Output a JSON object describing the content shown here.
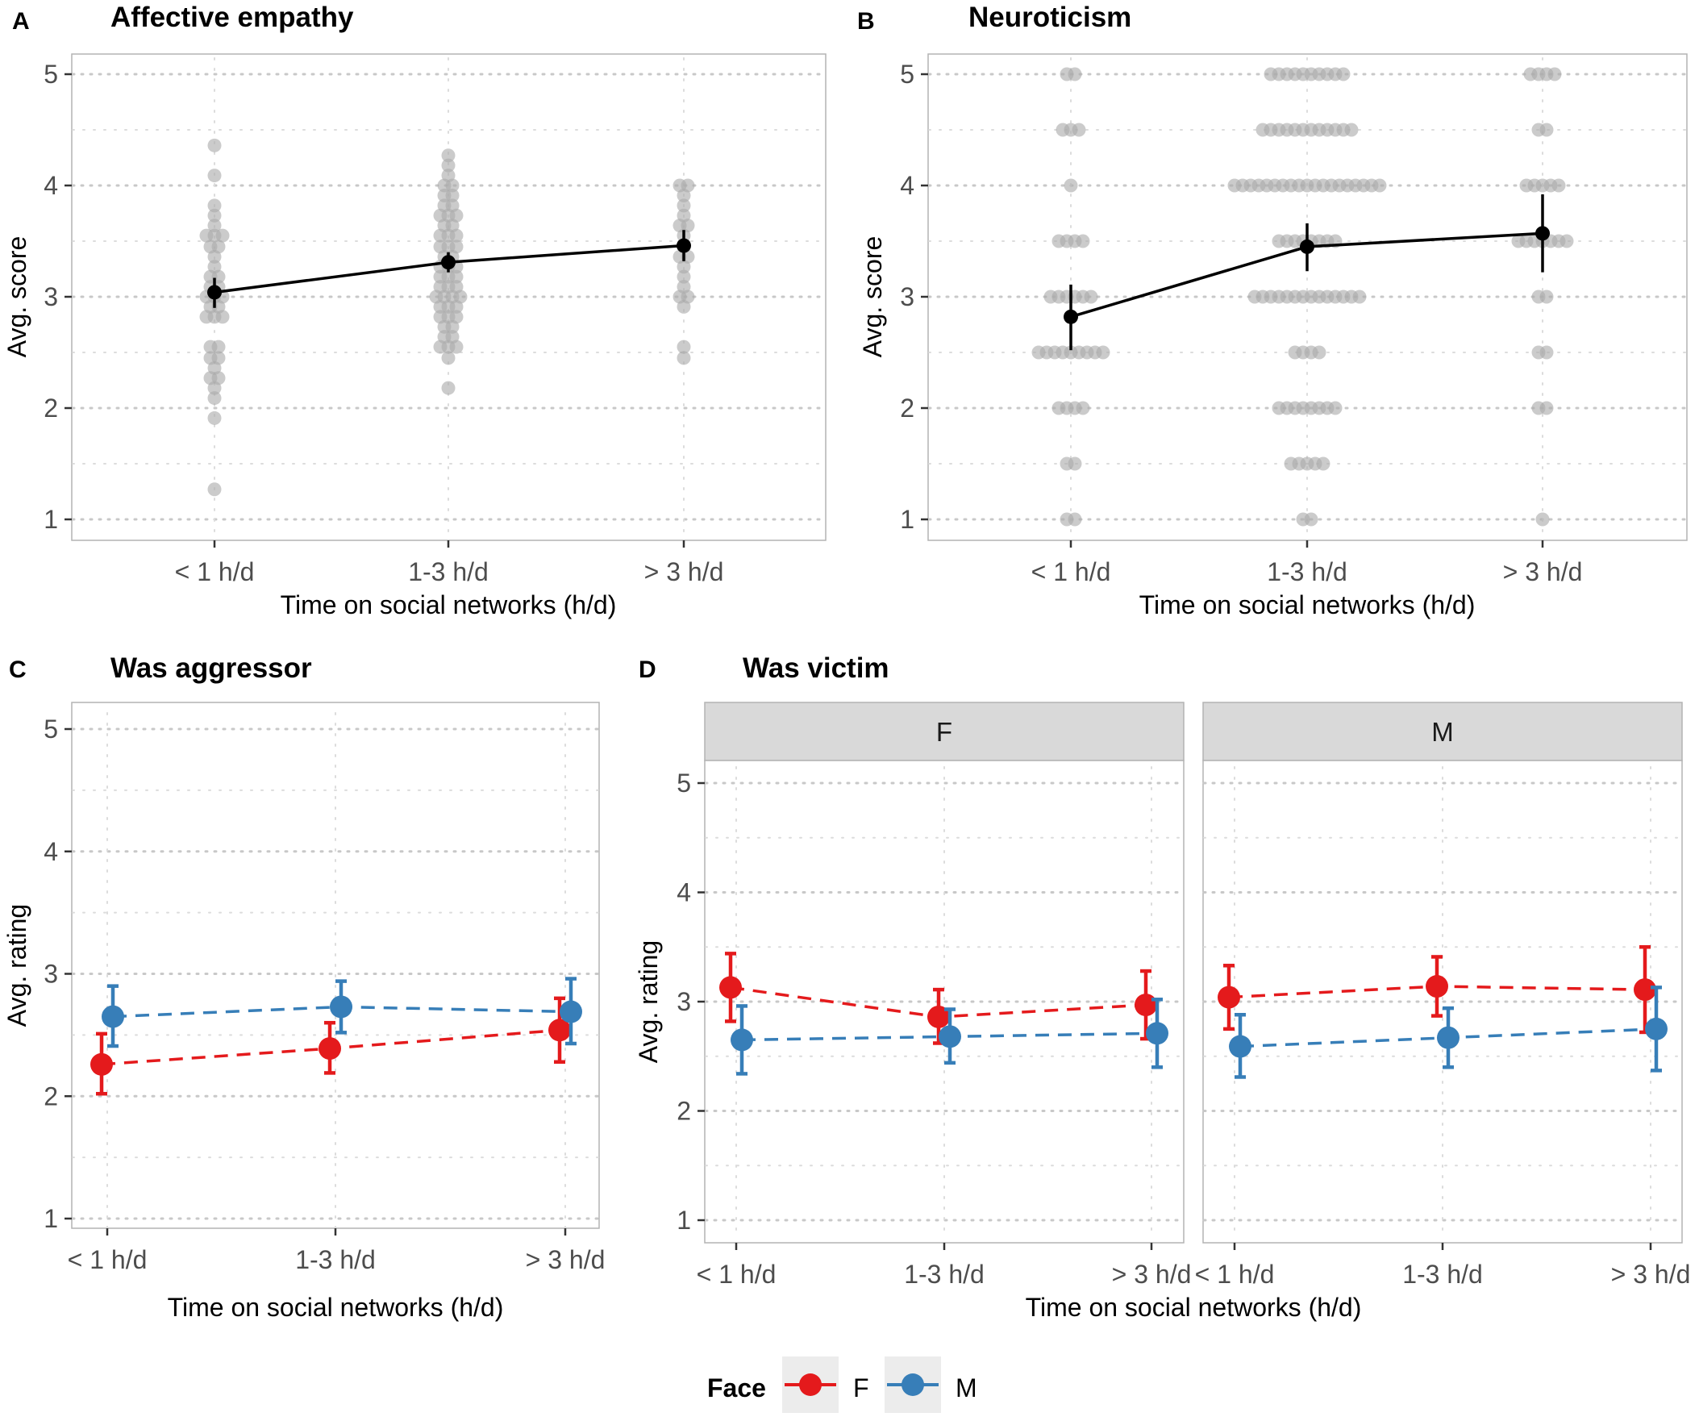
{
  "colors": {
    "F": "#E41A1C",
    "M": "#377EB8",
    "points": "#ABABAB",
    "mean": "#000000"
  },
  "legend": {
    "title": "Face",
    "items": [
      "F",
      "M"
    ]
  },
  "chart_data": [
    {
      "tag": "A",
      "title": "Affective empathy",
      "type": "scatter",
      "xlabel": "Time on social networks (h/d)",
      "ylabel": "Avg. score",
      "categories": [
        "< 1 h/d",
        "1-3 h/d",
        "> 3 h/d"
      ],
      "ylim": [
        1,
        5
      ],
      "yticks": [
        1,
        2,
        3,
        4,
        5
      ],
      "points": [
        [
          1.27,
          1.91,
          2.09,
          2.18,
          2.27,
          2.27,
          2.36,
          2.45,
          2.45,
          2.55,
          2.55,
          2.82,
          2.82,
          2.82,
          2.91,
          2.91,
          3.0,
          3.0,
          3.0,
          3.09,
          3.09,
          3.18,
          3.18,
          3.27,
          3.36,
          3.45,
          3.45,
          3.55,
          3.55,
          3.55,
          3.64,
          3.73,
          3.82,
          4.09,
          4.36
        ],
        [
          2.18,
          2.45,
          2.55,
          2.55,
          2.55,
          2.64,
          2.64,
          2.73,
          2.73,
          2.82,
          2.82,
          2.82,
          2.91,
          2.91,
          2.91,
          3.0,
          3.0,
          3.0,
          3.0,
          3.09,
          3.09,
          3.09,
          3.18,
          3.18,
          3.18,
          3.27,
          3.27,
          3.27,
          3.36,
          3.36,
          3.45,
          3.45,
          3.45,
          3.55,
          3.55,
          3.55,
          3.64,
          3.64,
          3.73,
          3.73,
          3.73,
          3.82,
          3.82,
          3.91,
          3.91,
          4.0,
          4.0,
          4.09,
          4.18,
          4.27
        ],
        [
          2.45,
          2.55,
          2.91,
          3.0,
          3.0,
          3.09,
          3.18,
          3.27,
          3.36,
          3.36,
          3.45,
          3.55,
          3.64,
          3.64,
          3.73,
          3.82,
          3.91,
          4.0,
          4.0
        ]
      ],
      "series": [
        {
          "name": "mean",
          "values": [
            3.04,
            3.31,
            3.46
          ],
          "ci_low": [
            2.9,
            3.22,
            3.32
          ],
          "ci_high": [
            3.17,
            3.4,
            3.6
          ]
        }
      ]
    },
    {
      "tag": "B",
      "title": "Neuroticism",
      "type": "scatter",
      "xlabel": "Time on social networks (h/d)",
      "ylabel": "Avg. score",
      "categories": [
        "< 1 h/d",
        "1-3 h/d",
        "> 3 h/d"
      ],
      "ylim": [
        1,
        5
      ],
      "yticks": [
        1,
        2,
        3,
        4,
        5
      ],
      "points": [
        [
          1.0,
          1.0,
          1.5,
          1.5,
          2.0,
          2.0,
          2.0,
          2.0,
          2.5,
          2.5,
          2.5,
          2.5,
          2.5,
          2.5,
          2.5,
          2.5,
          2.5,
          3.0,
          3.0,
          3.0,
          3.0,
          3.0,
          3.0,
          3.5,
          3.5,
          3.5,
          3.5,
          4.0,
          4.5,
          4.5,
          4.5,
          5.0,
          5.0
        ],
        [
          1.0,
          1.0,
          1.5,
          1.5,
          1.5,
          1.5,
          1.5,
          2.0,
          2.0,
          2.0,
          2.0,
          2.0,
          2.0,
          2.0,
          2.0,
          2.5,
          2.5,
          2.5,
          2.5,
          3.0,
          3.0,
          3.0,
          3.0,
          3.0,
          3.0,
          3.0,
          3.0,
          3.0,
          3.0,
          3.0,
          3.0,
          3.0,
          3.0,
          3.5,
          3.5,
          3.5,
          3.5,
          3.5,
          3.5,
          3.5,
          3.5,
          4.0,
          4.0,
          4.0,
          4.0,
          4.0,
          4.0,
          4.0,
          4.0,
          4.0,
          4.0,
          4.0,
          4.0,
          4.0,
          4.0,
          4.0,
          4.0,
          4.0,
          4.0,
          4.0,
          4.5,
          4.5,
          4.5,
          4.5,
          4.5,
          4.5,
          4.5,
          4.5,
          4.5,
          4.5,
          4.5,
          4.5,
          5.0,
          5.0,
          5.0,
          5.0,
          5.0,
          5.0,
          5.0,
          5.0,
          5.0,
          5.0
        ],
        [
          1.0,
          2.0,
          2.0,
          2.5,
          2.5,
          3.0,
          3.0,
          3.5,
          3.5,
          3.5,
          3.5,
          3.5,
          3.5,
          3.5,
          4.0,
          4.0,
          4.0,
          4.0,
          4.0,
          4.5,
          4.5,
          5.0,
          5.0,
          5.0,
          5.0
        ]
      ],
      "series": [
        {
          "name": "mean",
          "values": [
            2.82,
            3.45,
            3.57
          ],
          "ci_low": [
            2.52,
            3.23,
            3.22
          ],
          "ci_high": [
            3.11,
            3.66,
            3.92
          ]
        }
      ]
    },
    {
      "tag": "C",
      "title": "Was aggressor",
      "type": "line",
      "xlabel": "Time on social networks (h/d)",
      "ylabel": "Avg. rating",
      "categories": [
        "< 1 h/d",
        "1-3 h/d",
        "> 3 h/d"
      ],
      "ylim": [
        1,
        5
      ],
      "yticks": [
        1,
        2,
        3,
        4,
        5
      ],
      "series": [
        {
          "name": "F",
          "values": [
            2.26,
            2.39,
            2.54
          ],
          "ci_low": [
            2.02,
            2.19,
            2.28
          ],
          "ci_high": [
            2.51,
            2.6,
            2.8
          ]
        },
        {
          "name": "M",
          "values": [
            2.65,
            2.73,
            2.69
          ],
          "ci_low": [
            2.41,
            2.52,
            2.43
          ],
          "ci_high": [
            2.9,
            2.94,
            2.96
          ]
        }
      ]
    },
    {
      "tag": "D",
      "title": "Was victim",
      "type": "line",
      "xlabel": "Time on social networks (h/d)",
      "ylabel": "Avg. rating",
      "categories": [
        "< 1 h/d",
        "1-3 h/d",
        "> 3 h/d"
      ],
      "ylim": [
        1,
        5
      ],
      "yticks": [
        1,
        2,
        3,
        4,
        5
      ],
      "facets": [
        {
          "label": "F",
          "series": [
            {
              "name": "F",
              "values": [
                3.13,
                2.86,
                2.97
              ],
              "ci_low": [
                2.82,
                2.62,
                2.66
              ],
              "ci_high": [
                3.44,
                3.11,
                3.28
              ]
            },
            {
              "name": "M",
              "values": [
                2.65,
                2.68,
                2.71
              ],
              "ci_low": [
                2.34,
                2.44,
                2.4
              ],
              "ci_high": [
                2.96,
                2.93,
                3.02
              ]
            }
          ]
        },
        {
          "label": "M",
          "series": [
            {
              "name": "F",
              "values": [
                3.04,
                3.14,
                3.11
              ],
              "ci_low": [
                2.75,
                2.87,
                2.72
              ],
              "ci_high": [
                3.33,
                3.41,
                3.5
              ]
            },
            {
              "name": "M",
              "values": [
                2.59,
                2.67,
                2.75
              ],
              "ci_low": [
                2.31,
                2.4,
                2.37
              ],
              "ci_high": [
                2.88,
                2.94,
                3.13
              ]
            }
          ]
        }
      ]
    }
  ]
}
